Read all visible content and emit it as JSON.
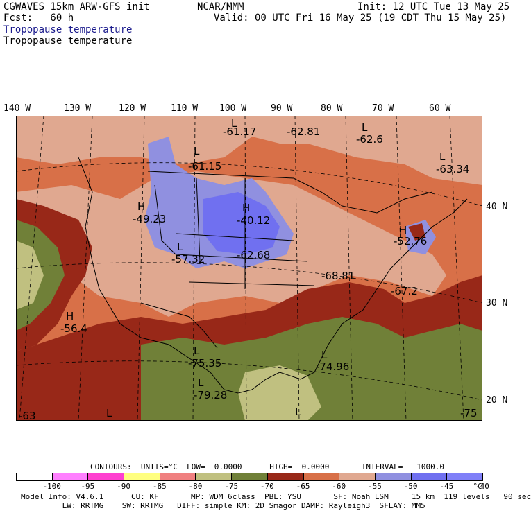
{
  "header": {
    "line1_left": "CGWAVES 15km ARW-GFS init",
    "line1_center": "NCAR/MMM",
    "line1_right": "Init: 12 UTC Tue 13 May 25",
    "line2_left": "Fcst:   60 h",
    "line2_right": "Valid: 00 UTC Fri 16 May 25 (19 CDT Thu 15 May 25)",
    "title_blue": "Tropopause temperature",
    "title_black": "Tropopause temperature"
  },
  "map": {
    "lon_labels": [
      "140 W",
      "130 W",
      "120 W",
      "110 W",
      "100 W",
      "90 W",
      "80 W",
      "70 W",
      "60 W"
    ],
    "lat_labels": [
      "40 N",
      "30 N",
      "20 N"
    ],
    "annotations": [
      {
        "t": "L",
        "v": "-61.17"
      },
      {
        "t": "",
        "v": "-62.81"
      },
      {
        "t": "L",
        "v": "-62.6"
      },
      {
        "t": "L",
        "v": "-61.15"
      },
      {
        "t": "L",
        "v": "-63.34"
      },
      {
        "t": "H",
        "v": "-49.23"
      },
      {
        "t": "H",
        "v": "-40.12"
      },
      {
        "t": "L",
        "v": "-57.32"
      },
      {
        "t": "",
        "v": "-62.68"
      },
      {
        "t": "H",
        "v": "-52.76"
      },
      {
        "t": "",
        "v": "-68.81"
      },
      {
        "t": "",
        "v": "-67.2"
      },
      {
        "t": "H",
        "v": "-56.4"
      },
      {
        "t": "L",
        "v": "-75.35"
      },
      {
        "t": "L",
        "v": "-74.96"
      },
      {
        "t": "L",
        "v": "-79.28"
      },
      {
        "t": "",
        "v": "-63"
      },
      {
        "t": "L",
        "v": ""
      },
      {
        "t": "L",
        "v": ""
      },
      {
        "t": "",
        "v": "-75"
      }
    ]
  },
  "legend": {
    "contours_line": "CONTOURS:  UNITS=°C  LOW=  0.0000      HIGH=  0.0000       INTERVAL=   1000.0",
    "units": "°C",
    "levels": [
      "-100",
      "-95",
      "-90",
      "-85",
      "-80",
      "-75",
      "-70",
      "-65",
      "-60",
      "-55",
      "-50",
      "-45",
      "-40"
    ],
    "colors": [
      "#ffffff",
      "#ff80ff",
      "#ff40d0",
      "#ffff80",
      "#f08080",
      "#c0c080",
      "#708038",
      "#982818",
      "#d87048",
      "#e0a890",
      "#9090e0",
      "#7070f0",
      "#8080f8"
    ]
  },
  "footer": {
    "line1": "Model Info: V4.6.1      CU: KF       MP: WDM 6class  PBL: YSU       SF: Noah LSM     15 km  119 levels   90 sec",
    "line2": "         LW: RRTMG    SW: RRTMG   DIFF: simple KM: 2D Smagor DAMP: Rayleigh3  SFLAY: MM5"
  }
}
